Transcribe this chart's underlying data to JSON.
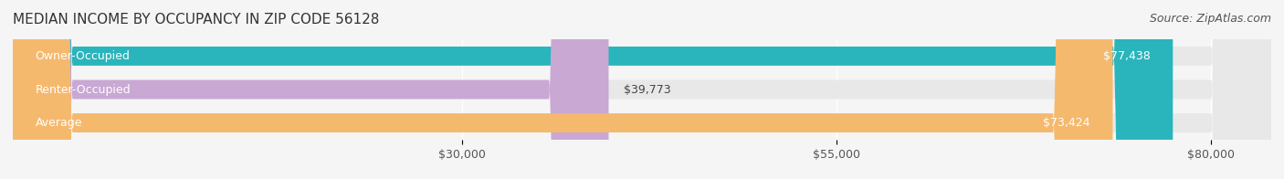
{
  "title": "MEDIAN INCOME BY OCCUPANCY IN ZIP CODE 56128",
  "source": "Source: ZipAtlas.com",
  "categories": [
    "Owner-Occupied",
    "Renter-Occupied",
    "Average"
  ],
  "values": [
    77438,
    39773,
    73424
  ],
  "bar_colors": [
    "#2ab5bc",
    "#c9a8d4",
    "#f5b96e"
  ],
  "bar_labels": [
    "$77,438",
    "$39,773",
    "$73,424"
  ],
  "x_ticks": [
    30000,
    55000,
    80000
  ],
  "x_tick_labels": [
    "$30,000",
    "$55,000",
    "$80,000"
  ],
  "xlim": [
    0,
    84000
  ],
  "background_color": "#f5f5f5",
  "bar_background_color": "#e8e8e8",
  "title_fontsize": 11,
  "source_fontsize": 9,
  "label_fontsize": 9,
  "tick_fontsize": 9
}
